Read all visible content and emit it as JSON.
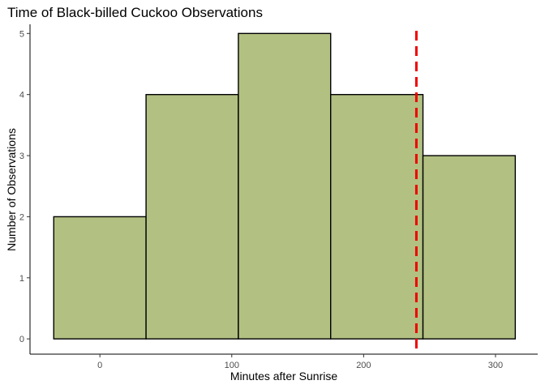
{
  "chart_data": {
    "type": "bar",
    "title": "Time of Black-billed Cuckoo Observations",
    "xlabel": "Minutes after Sunrise",
    "ylabel": "Number of Observations",
    "bins": [
      {
        "from": -35,
        "to": 35,
        "count": 2
      },
      {
        "from": 35,
        "to": 105,
        "count": 4
      },
      {
        "from": 105,
        "to": 175,
        "count": 5
      },
      {
        "from": 175,
        "to": 245,
        "count": 4
      },
      {
        "from": 245,
        "to": 315,
        "count": 3
      }
    ],
    "xlim": [
      -53,
      332
    ],
    "ylim": [
      -0.25,
      5.15
    ],
    "xticks": [
      0,
      100,
      200,
      300
    ],
    "xtick_labels": [
      "0",
      "100",
      "200",
      "300"
    ],
    "yticks": [
      0,
      1,
      2,
      3,
      4,
      5
    ],
    "ytick_labels": [
      "0",
      "1",
      "2",
      "3",
      "4",
      "5"
    ],
    "reference_line": {
      "x": 240,
      "style": "dashed",
      "color": "#ee0000"
    },
    "bar_fill": "#b2c182",
    "bar_stroke": "#000000",
    "grid": false
  }
}
